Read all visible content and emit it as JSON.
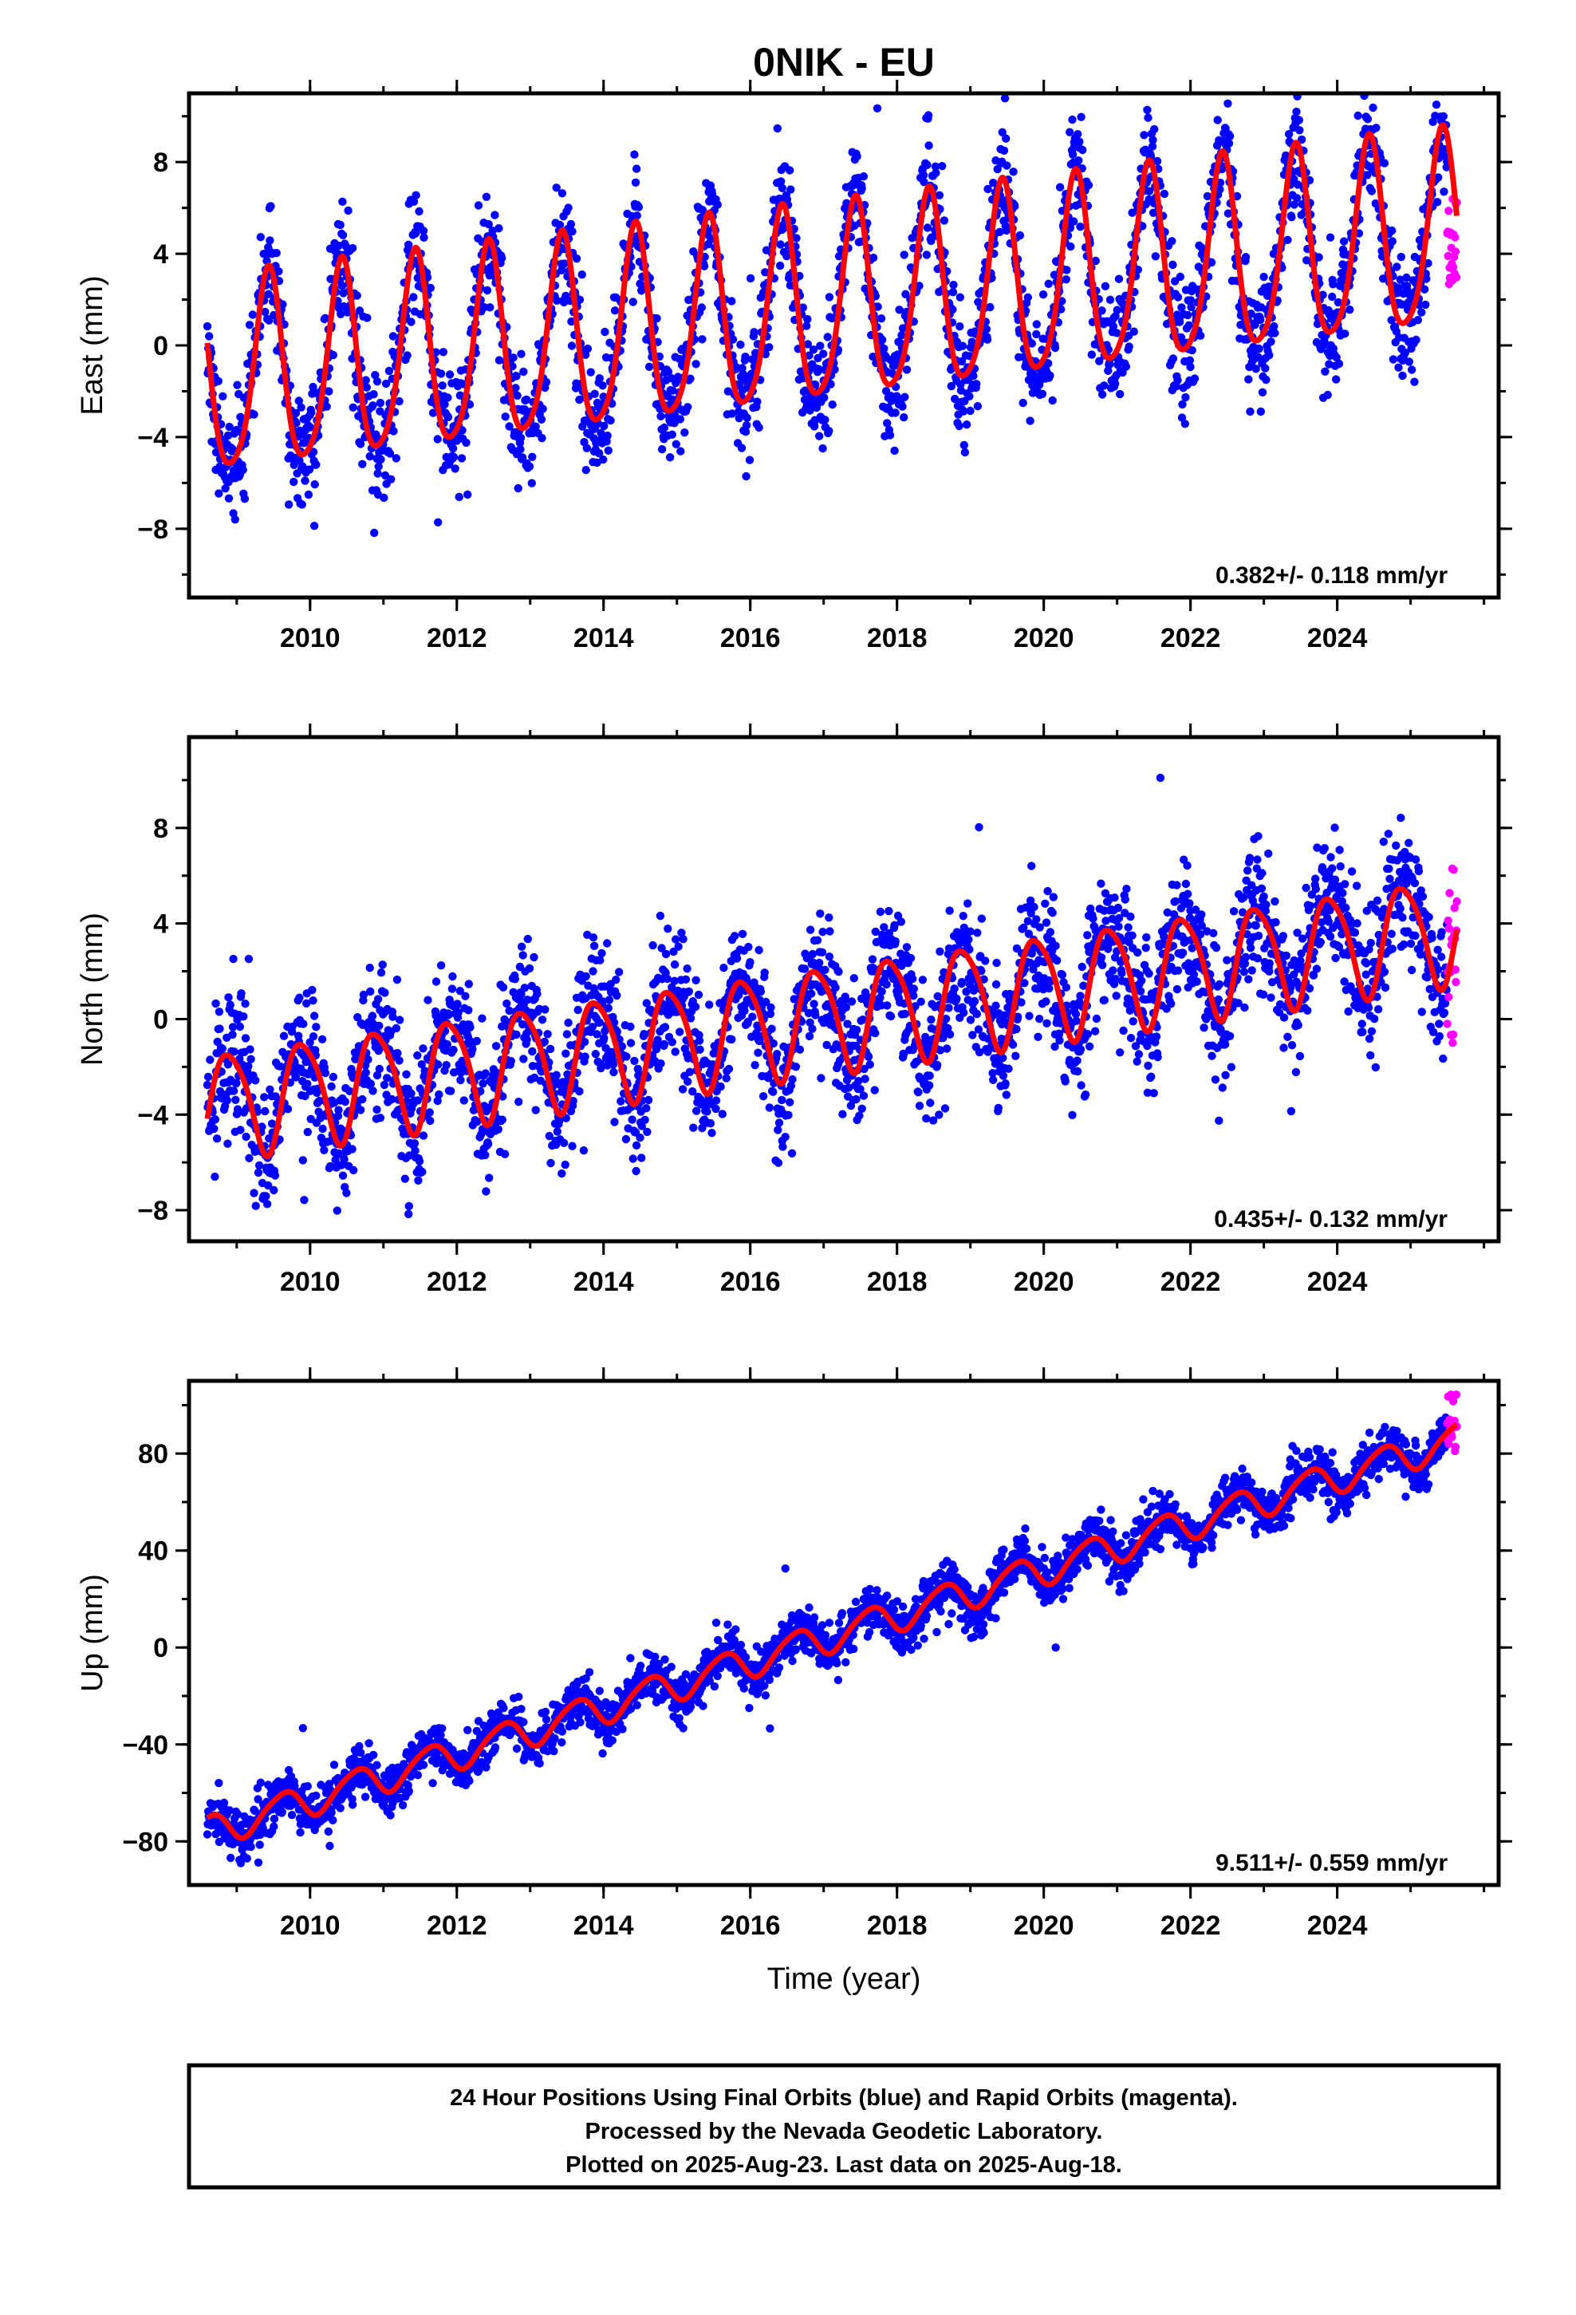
{
  "title": "0NIK - EU",
  "caption": {
    "lines": [
      "24 Hour Positions Using Final Orbits (blue) and Rapid Orbits (magenta).",
      "Processed by the Nevada Geodetic Laboratory.",
      "Plotted on 2025-Aug-23. Last data on 2025-Aug-18."
    ]
  },
  "colors": {
    "final_orbits": "#0000ff",
    "rapid_orbits": "#ff00ff",
    "model": "#ff0000",
    "frame": "#000000"
  },
  "chart_data": [
    {
      "type": "scatter",
      "component": "east",
      "ylabel": "East (mm)",
      "xlabel": "",
      "xlim": [
        2008.35,
        2026.2
      ],
      "ylim": [
        -11,
        11
      ],
      "x_ticks": [
        2010,
        2012,
        2014,
        2016,
        2018,
        2020,
        2022,
        2024
      ],
      "y_ticks": [
        -8,
        -4,
        0,
        4,
        8
      ],
      "rate_text": "0.382+/- 0.118 mm/yr",
      "grid": false,
      "model": {
        "start": 2008.6,
        "end": 2025.63,
        "intercept_at_2008_6": -1.7,
        "rate_mm_per_yr": 0.382,
        "annual_amplitude": 4.2,
        "annual_peak_fraction": 0.43,
        "semiannual_amplitude": 0.7,
        "semiannual_peak_fraction": 0.45
      },
      "final_orbits": {
        "start": 2008.6,
        "end": 2025.5,
        "scatter_mm": 1.3
      },
      "rapid_orbits": {
        "start": 2025.5,
        "end": 2025.63,
        "y_range": [
          2.6,
          6.6
        ]
      }
    },
    {
      "type": "scatter",
      "component": "north",
      "ylabel": "North (mm)",
      "xlabel": "",
      "xlim": [
        2008.35,
        2026.2
      ],
      "ylim": [
        -9.3,
        11.8
      ],
      "x_ticks": [
        2010,
        2012,
        2014,
        2016,
        2018,
        2020,
        2022,
        2024
      ],
      "y_ticks": [
        -8,
        -4,
        0,
        4,
        8
      ],
      "rate_text": "0.435+/- 0.132 mm/yr",
      "grid": false,
      "model": {
        "start": 2008.6,
        "end": 2025.63,
        "intercept_at_2008_6": -3.6,
        "rate_mm_per_yr": 0.435,
        "annual_amplitude": 2.2,
        "annual_peak_fraction": 0.9,
        "semiannual_amplitude": 0.35,
        "semiannual_peak_fraction": 0.2
      },
      "final_orbits": {
        "start": 2008.6,
        "end": 2025.5,
        "scatter_mm": 1.4
      },
      "rapid_orbits": {
        "start": 2025.5,
        "end": 2025.63,
        "y_range": [
          -1.2,
          6.3
        ]
      }
    },
    {
      "type": "scatter",
      "component": "up",
      "ylabel": "Up (mm)",
      "xlabel": "Time (year)",
      "xlim": [
        2008.35,
        2026.2
      ],
      "ylim": [
        -98,
        110
      ],
      "x_ticks": [
        2010,
        2012,
        2014,
        2016,
        2018,
        2020,
        2022,
        2024
      ],
      "y_ticks": [
        -80,
        -40,
        0,
        40,
        80
      ],
      "rate_text": "9.511+/- 0.559 mm/yr",
      "grid": false,
      "model": {
        "start": 2008.6,
        "end": 2025.63,
        "intercept_at_2008_6": -76,
        "rate_mm_per_yr": 9.511,
        "annual_amplitude": 6.5,
        "annual_peak_fraction": 0.62,
        "semiannual_amplitude": 1.0,
        "semiannual_peak_fraction": 0.3
      },
      "final_orbits": {
        "start": 2008.6,
        "end": 2025.5,
        "scatter_mm": 4.8
      },
      "rapid_orbits": {
        "start": 2025.5,
        "end": 2025.63,
        "y_range": [
          81,
          105
        ]
      }
    }
  ]
}
